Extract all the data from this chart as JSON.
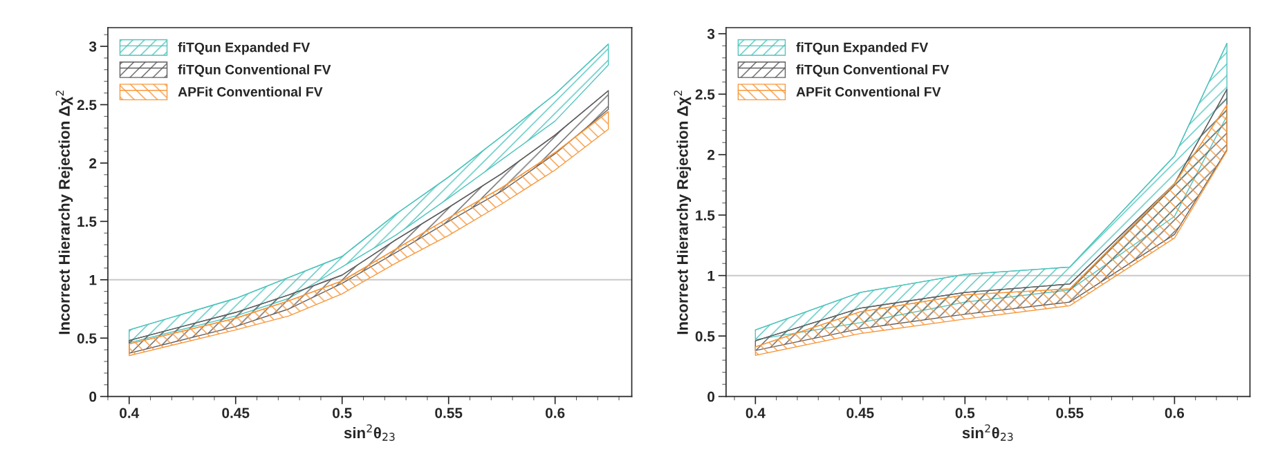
{
  "chart_data": [
    {
      "type": "line",
      "xlabel": "sin$^{2}$θ$_{23}$",
      "ylabel": "Incorrect Hierarchy Rejection Δχ$^{2}$",
      "x": [
        0.4,
        0.45,
        0.475,
        0.5,
        0.525,
        0.55,
        0.575,
        0.6,
        0.625
      ],
      "xlim": [
        0.39,
        0.636
      ],
      "xticks": [
        0.4,
        0.45,
        0.5,
        0.55,
        0.6
      ],
      "ylim": [
        0,
        3.16
      ],
      "yticks": [
        0,
        0.5,
        1,
        1.5,
        2,
        2.5,
        3
      ],
      "grid": false,
      "legend": "top left",
      "marker": "none",
      "line_style": "solid",
      "ref_lines": [
        {
          "axis": "y",
          "value": 1,
          "color": "#c8c8c8"
        }
      ],
      "series": [
        {
          "name": "fiTQun Expanded FV",
          "color": "#4fc4bd",
          "values": [
            0.57,
            0.84,
            1.02,
            1.2,
            1.56,
            1.88,
            2.23,
            2.59,
            3.02
          ],
          "lower": [
            0.46,
            0.69,
            0.84,
            1.11,
            1.38,
            1.7,
            2.03,
            2.36,
            2.84
          ],
          "upper": [
            0.57,
            0.84,
            1.02,
            1.2,
            1.56,
            1.88,
            2.23,
            2.59,
            3.02
          ]
        },
        {
          "name": "fiTQun Conventional FV",
          "color": "#5f5f5f",
          "values": [
            0.48,
            0.72,
            0.87,
            1.04,
            1.34,
            1.62,
            1.91,
            2.24,
            2.62
          ],
          "lower": [
            0.37,
            0.6,
            0.75,
            0.97,
            1.23,
            1.5,
            1.76,
            2.08,
            2.46
          ],
          "upper": [
            0.48,
            0.72,
            0.87,
            1.04,
            1.34,
            1.62,
            1.91,
            2.24,
            2.62
          ]
        },
        {
          "name": "APFit Conventional FV",
          "color": "#f7973a",
          "values": [
            0.45,
            0.67,
            0.82,
            0.99,
            1.26,
            1.53,
            1.79,
            2.09,
            2.44
          ],
          "lower": [
            0.35,
            0.57,
            0.69,
            0.88,
            1.14,
            1.38,
            1.65,
            1.94,
            2.29
          ],
          "upper": [
            0.45,
            0.67,
            0.82,
            0.99,
            1.26,
            1.53,
            1.79,
            2.09,
            2.44
          ]
        }
      ]
    },
    {
      "type": "line",
      "xlabel": "sin$^{2}$θ$_{23}$",
      "ylabel": "Incorrect Hierarchy Rejection Δχ$^{2}$",
      "x": [
        0.4,
        0.45,
        0.5,
        0.55,
        0.6,
        0.625
      ],
      "xlim": [
        0.386,
        0.636
      ],
      "xticks": [
        0.4,
        0.45,
        0.5,
        0.55,
        0.6
      ],
      "ylim": [
        0,
        3.05
      ],
      "yticks": [
        0,
        0.5,
        1,
        1.5,
        2,
        2.5,
        3
      ],
      "grid": false,
      "legend": "top left",
      "marker": "none",
      "line_style": "solid",
      "ref_lines": [
        {
          "axis": "y",
          "value": 1,
          "color": "#c8c8c8"
        }
      ],
      "series": [
        {
          "name": "fiTQun Expanded FV",
          "color": "#4fc4bd",
          "values": [
            0.55,
            0.86,
            1.01,
            1.07,
            1.99,
            2.92
          ],
          "lower": [
            0.47,
            0.61,
            0.78,
            0.88,
            1.49,
            2.32
          ],
          "upper": [
            0.55,
            0.86,
            1.01,
            1.07,
            1.99,
            2.92
          ]
        },
        {
          "name": "fiTQun Conventional FV",
          "color": "#5f5f5f",
          "values": [
            0.46,
            0.73,
            0.86,
            0.93,
            1.76,
            2.54
          ],
          "lower": [
            0.38,
            0.56,
            0.68,
            0.78,
            1.34,
            2.04
          ],
          "upper": [
            0.46,
            0.73,
            0.86,
            0.93,
            1.76,
            2.54
          ]
        },
        {
          "name": "APFit Conventional FV",
          "color": "#f7973a",
          "values": [
            0.41,
            0.7,
            0.84,
            0.89,
            1.76,
            2.41
          ],
          "lower": [
            0.34,
            0.52,
            0.64,
            0.75,
            1.31,
            2.03
          ],
          "upper": [
            0.41,
            0.7,
            0.84,
            0.89,
            1.76,
            2.41
          ]
        }
      ]
    }
  ]
}
